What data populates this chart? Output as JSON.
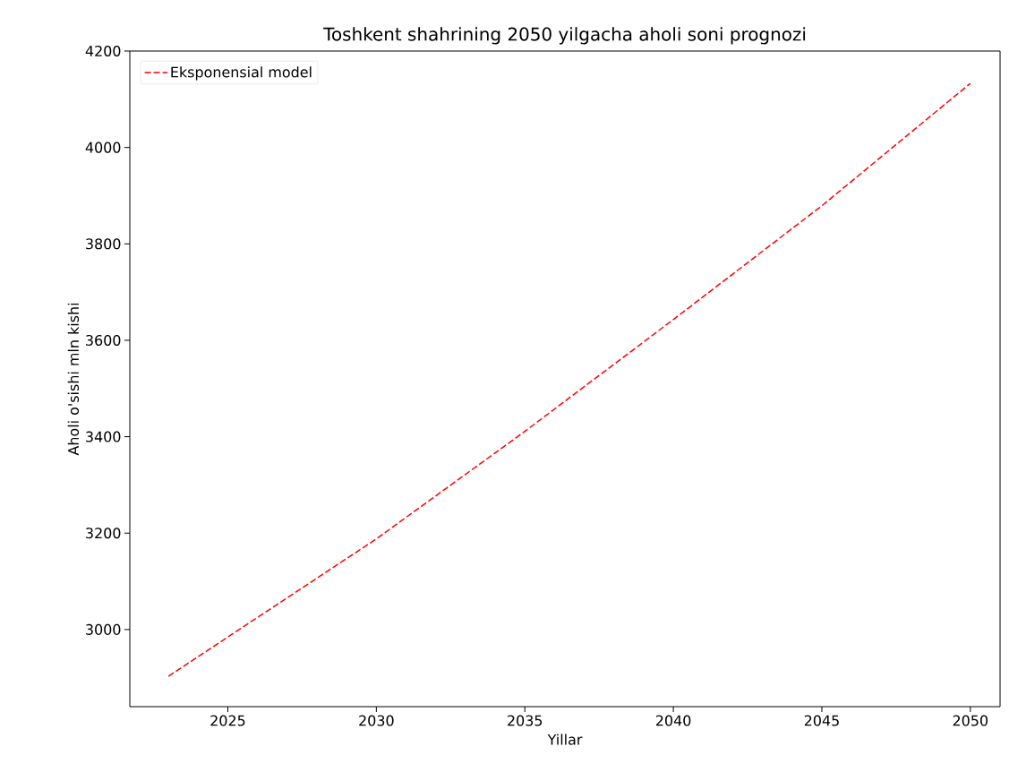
{
  "chart_data": {
    "type": "line",
    "title": "Toshkent shahrining 2050 yilgacha aholi soni prognozi",
    "xlabel": "Yillar",
    "ylabel": "Aholi o'sishi mln kishi",
    "x": [
      2023,
      2030,
      2035,
      2040,
      2045,
      2050
    ],
    "series": [
      {
        "name": "Eksponensial model",
        "color": "#ff0000",
        "values": [
          2903,
          3188,
          3411,
          3643,
          3879,
          4133
        ]
      }
    ],
    "xlim": [
      2021.7,
      2051
    ],
    "ylim": [
      2840,
      4200
    ],
    "xticks": [
      2025,
      2030,
      2035,
      2040,
      2045,
      2050
    ],
    "yticks": [
      3000,
      3200,
      3400,
      3600,
      3800,
      4000,
      4200
    ],
    "line_style": "dashed",
    "legend": "top left",
    "grid": false
  }
}
